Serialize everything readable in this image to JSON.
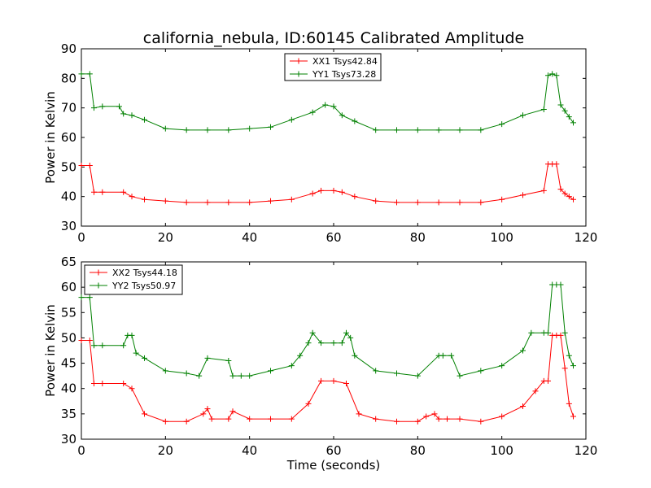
{
  "title": "california_nebula, ID:60145 Calibrated Amplitude",
  "chart_data": [
    {
      "type": "line",
      "xlabel": "",
      "ylabel": "Power in Kelvin",
      "xlim": [
        0,
        120
      ],
      "ylim": [
        30,
        90
      ],
      "xticks": [
        0,
        20,
        40,
        60,
        80,
        100,
        120
      ],
      "yticks": [
        30,
        40,
        50,
        60,
        70,
        80,
        90
      ],
      "legend_position": "upper-center",
      "series": [
        {
          "name": "XX1 Tsys42.84",
          "color": "#ff0000",
          "x": [
            0,
            2,
            3,
            5,
            10,
            12,
            15,
            20,
            25,
            30,
            35,
            40,
            45,
            50,
            55,
            57,
            60,
            62,
            65,
            70,
            75,
            80,
            85,
            90,
            95,
            100,
            105,
            110,
            111,
            112,
            113,
            114,
            115,
            116,
            117
          ],
          "y": [
            50.5,
            50.5,
            41.5,
            41.5,
            41.5,
            40,
            39,
            38.5,
            38,
            38,
            38,
            38,
            38.5,
            39,
            41,
            42,
            42,
            41.5,
            40,
            38.5,
            38,
            38,
            38,
            38,
            38,
            39,
            40.5,
            42,
            51,
            51,
            51,
            42.5,
            41,
            40,
            39
          ]
        },
        {
          "name": "YY1 Tsys73.28",
          "color": "#008000",
          "x": [
            0,
            2,
            3,
            5,
            9,
            10,
            12,
            15,
            20,
            25,
            30,
            35,
            40,
            45,
            50,
            55,
            58,
            60,
            62,
            65,
            70,
            75,
            80,
            85,
            90,
            95,
            100,
            105,
            110,
            111,
            112,
            113,
            114,
            115,
            116,
            117
          ],
          "y": [
            81.5,
            81.5,
            70,
            70.5,
            70.5,
            68,
            67.5,
            66,
            63,
            62.5,
            62.5,
            62.5,
            63,
            63.5,
            66,
            68.5,
            71,
            70.5,
            67.5,
            65.5,
            62.5,
            62.5,
            62.5,
            62.5,
            62.5,
            62.5,
            64.5,
            67.5,
            69.5,
            81,
            81.5,
            81,
            71,
            69,
            67,
            65
          ]
        }
      ]
    },
    {
      "type": "line",
      "xlabel": "Time (seconds)",
      "ylabel": "Power in Kelvin",
      "xlim": [
        0,
        120
      ],
      "ylim": [
        30,
        65
      ],
      "xticks": [
        0,
        20,
        40,
        60,
        80,
        100,
        120
      ],
      "yticks": [
        30,
        35,
        40,
        45,
        50,
        55,
        60,
        65
      ],
      "legend_position": "upper-left",
      "series": [
        {
          "name": "XX2 Tsys44.18",
          "color": "#ff0000",
          "x": [
            0,
            2,
            3,
            5,
            10,
            12,
            15,
            20,
            25,
            29,
            30,
            31,
            35,
            36,
            40,
            45,
            50,
            54,
            57,
            60,
            63,
            66,
            70,
            75,
            80,
            82,
            84,
            85,
            87,
            90,
            95,
            100,
            105,
            108,
            110,
            111,
            112,
            113,
            114,
            115,
            116,
            117
          ],
          "y": [
            49.5,
            49.5,
            41,
            41,
            41,
            40,
            35,
            33.5,
            33.5,
            35,
            36,
            34,
            34,
            35.5,
            34,
            34,
            34,
            37,
            41.5,
            41.5,
            41,
            35,
            34,
            33.5,
            33.5,
            34.5,
            35,
            34,
            34,
            34,
            33.5,
            34.5,
            36.5,
            39.5,
            41.5,
            41.5,
            50.5,
            50.5,
            50.5,
            44,
            37,
            34.5
          ]
        },
        {
          "name": "YY2 Tsys50.97",
          "color": "#008000",
          "x": [
            0,
            2,
            3,
            5,
            10,
            11,
            12,
            13,
            15,
            20,
            25,
            28,
            30,
            35,
            36,
            38,
            40,
            45,
            50,
            52,
            54,
            55,
            57,
            60,
            62,
            63,
            64,
            65,
            70,
            75,
            80,
            85,
            86,
            88,
            90,
            95,
            100,
            105,
            107,
            110,
            111,
            112,
            113,
            114,
            115,
            116,
            117
          ],
          "y": [
            58,
            58,
            48.5,
            48.5,
            48.5,
            50.5,
            50.5,
            47,
            46,
            43.5,
            43,
            42.5,
            46,
            45.5,
            42.5,
            42.5,
            42.5,
            43.5,
            44.5,
            46.5,
            49,
            51,
            49,
            49,
            49,
            51,
            50,
            46.5,
            43.5,
            43,
            42.5,
            46.5,
            46.5,
            46.5,
            42.5,
            43.5,
            44.5,
            47.5,
            51,
            51,
            51,
            60.5,
            60.5,
            60.5,
            51,
            46.5,
            44.5
          ]
        }
      ]
    }
  ]
}
